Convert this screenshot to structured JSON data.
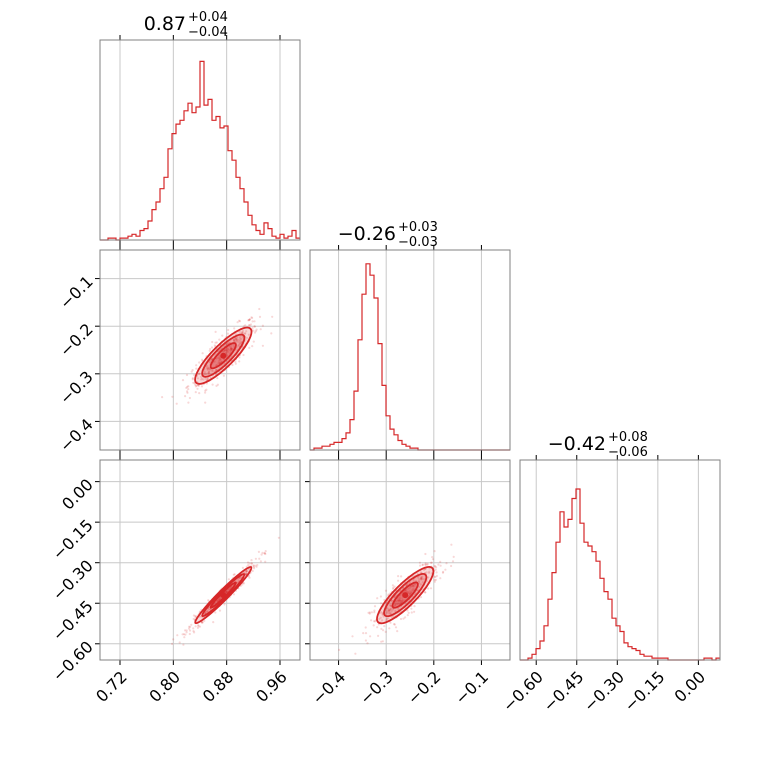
{
  "chart_data": {
    "type": "corner",
    "color": "#d62728",
    "grid": true,
    "parameters": [
      {
        "title": {
          "median": "0.87",
          "plus": "+0.04",
          "minus": "−0.04"
        },
        "range": [
          0.69,
          0.99
        ],
        "ticks": [
          {
            "value": 0.72,
            "label": "0.72"
          },
          {
            "value": 0.8,
            "label": "0.80"
          },
          {
            "value": 0.88,
            "label": "0.88"
          },
          {
            "value": 0.96,
            "label": "0.96"
          }
        ],
        "histogram": {
          "start": 0.69,
          "bin_width": 0.006,
          "ymax": 1.0,
          "values": [
            0,
            0,
            0.01,
            0.01,
            0,
            0.01,
            0.01,
            0.02,
            0.03,
            0.02,
            0.05,
            0.06,
            0.1,
            0.16,
            0.2,
            0.27,
            0.33,
            0.48,
            0.56,
            0.61,
            0.63,
            0.68,
            0.72,
            0.67,
            0.7,
            0.94,
            0.71,
            0.74,
            0.63,
            0.65,
            0.59,
            0.6,
            0.47,
            0.42,
            0.33,
            0.27,
            0.2,
            0.13,
            0.08,
            0.05,
            0.03,
            0.09,
            0.06,
            0.02,
            0.01,
            0.03,
            0.01,
            0.02,
            0.05,
            0.01
          ]
        }
      },
      {
        "title": {
          "median": "−0.26",
          "plus": "+0.03",
          "minus": "−0.03"
        },
        "range": [
          -0.46,
          -0.04
        ],
        "ticks": [
          {
            "value": -0.4,
            "label": "−0.4"
          },
          {
            "value": -0.3,
            "label": "−0.3"
          },
          {
            "value": -0.2,
            "label": "−0.2"
          },
          {
            "value": -0.1,
            "label": "−0.1"
          }
        ],
        "histogram": {
          "start": -0.46,
          "bin_width": 0.0084,
          "ymax": 1.0,
          "values": [
            0,
            0.01,
            0.01,
            0.02,
            0.02,
            0.03,
            0.04,
            0.04,
            0.06,
            0.09,
            0.16,
            0.31,
            0.58,
            0.82,
            0.98,
            0.92,
            0.8,
            0.56,
            0.34,
            0.18,
            0.11,
            0.08,
            0.05,
            0.03,
            0.02,
            0.01,
            0.01,
            0,
            0,
            0,
            0,
            0,
            0,
            0,
            0,
            0,
            0,
            0,
            0,
            0,
            0,
            0,
            0,
            0,
            0,
            0,
            0,
            0,
            0,
            0
          ]
        }
      },
      {
        "title": {
          "median": "−0.42",
          "plus": "+0.08",
          "minus": "−0.06"
        },
        "range": [
          -0.66,
          0.08
        ],
        "ticks": [
          {
            "value": -0.6,
            "label": "−0.60"
          },
          {
            "value": -0.45,
            "label": "−0.45"
          },
          {
            "value": -0.3,
            "label": "−0.30"
          },
          {
            "value": -0.15,
            "label": "−0.15"
          },
          {
            "value": 0.0,
            "label": "0.00"
          }
        ],
        "histogram": {
          "start": -0.66,
          "bin_width": 0.0148,
          "ymax": 1.0,
          "values": [
            0,
            0,
            0.01,
            0.03,
            0.06,
            0.1,
            0.18,
            0.32,
            0.46,
            0.62,
            0.78,
            0.7,
            0.74,
            0.85,
            0.9,
            0.72,
            0.62,
            0.6,
            0.57,
            0.52,
            0.43,
            0.36,
            0.32,
            0.22,
            0.18,
            0.15,
            0.09,
            0.07,
            0.06,
            0.05,
            0.03,
            0.02,
            0.02,
            0.01,
            0.01,
            0.01,
            0.01,
            0,
            0,
            0,
            0,
            0,
            0,
            0,
            0,
            0,
            0.01,
            0.01,
            0,
            0.01
          ]
        }
      }
    ],
    "correlations": [
      {
        "row": 1,
        "col": 0,
        "center": [
          0.875,
          -0.262
        ],
        "rho": 0.85
      },
      {
        "row": 2,
        "col": 0,
        "center": [
          0.875,
          -0.42
        ],
        "rho": 0.97
      },
      {
        "row": 2,
        "col": 1,
        "center": [
          -0.26,
          -0.42
        ],
        "rho": 0.85
      }
    ]
  }
}
